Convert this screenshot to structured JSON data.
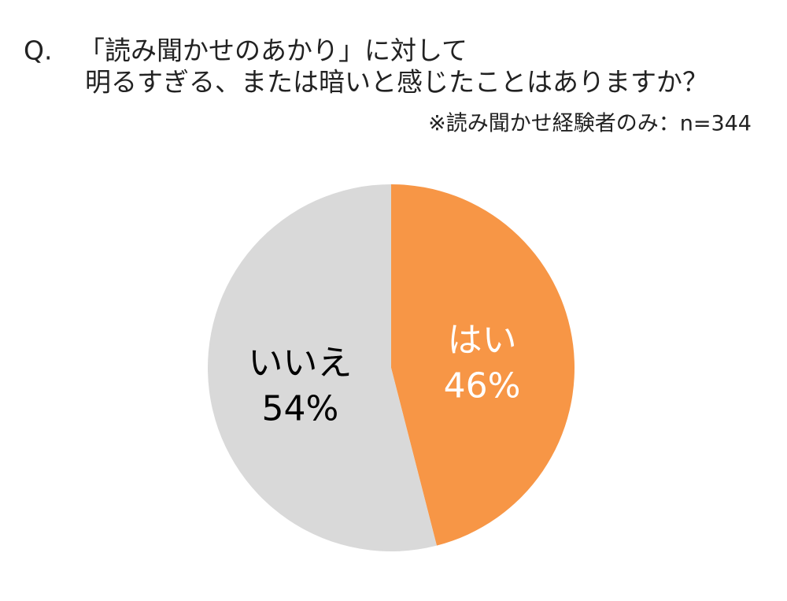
{
  "chart_data": {
    "type": "pie",
    "title": [
      "Q.",
      "「読み聞かせのあかり」に対して",
      "明るすぎる、または暗いと感じたことはありますか？"
    ],
    "subtitle": "※読み聞かせ経験者のみ：n=344",
    "categories": [
      "はい",
      "いいえ"
    ],
    "values": [
      46,
      54
    ],
    "value_labels": [
      "46%",
      "54%"
    ],
    "colors": [
      "#f79646",
      "#d9d9d9"
    ],
    "label_colors": [
      "#ffffff",
      "#000000"
    ]
  }
}
